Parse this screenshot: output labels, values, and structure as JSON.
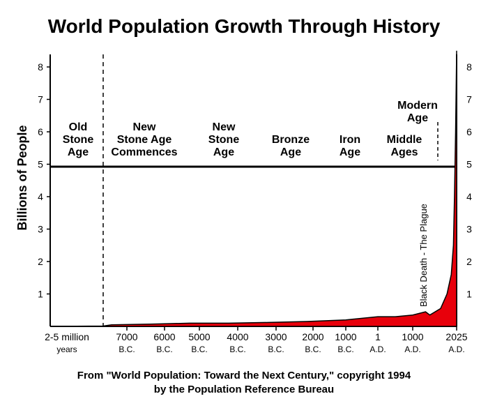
{
  "chart_data": {
    "type": "area",
    "title": "World Population Growth Through History",
    "ylabel": "Billions of People",
    "xlabel": "",
    "ylim": [
      0,
      8.5
    ],
    "y_ticks": [
      "1",
      "2",
      "3",
      "4",
      "5",
      "6",
      "7",
      "8"
    ],
    "x_ticks": [
      {
        "main": "2-5 million",
        "sub": "years"
      },
      {
        "main": "7000",
        "sub": "B.C."
      },
      {
        "main": "6000",
        "sub": "B.C."
      },
      {
        "main": "5000",
        "sub": "B.C."
      },
      {
        "main": "4000",
        "sub": "B.C."
      },
      {
        "main": "3000",
        "sub": "B.C."
      },
      {
        "main": "2000",
        "sub": "B.C."
      },
      {
        "main": "1000",
        "sub": "B.C."
      },
      {
        "main": "1",
        "sub": "A.D."
      },
      {
        "main": "1000",
        "sub": "A.D."
      },
      {
        "main": "2025",
        "sub": "A.D."
      }
    ],
    "series": [
      {
        "color": "#e8000b",
        "points": [
          {
            "x": "2-5 million years",
            "y": 0.0
          },
          {
            "x": "8000 B.C.",
            "y": 0.01
          },
          {
            "x": "7000 B.C.",
            "y": 0.05
          },
          {
            "x": "6000 B.C.",
            "y": 0.07
          },
          {
            "x": "5000 B.C.",
            "y": 0.1
          },
          {
            "x": "4000 B.C.",
            "y": 0.1
          },
          {
            "x": "3000 B.C.",
            "y": 0.12
          },
          {
            "x": "2000 B.C.",
            "y": 0.15
          },
          {
            "x": "1000 B.C.",
            "y": 0.2
          },
          {
            "x": "1 A.D.",
            "y": 0.3
          },
          {
            "x": "500 A.D.",
            "y": 0.3
          },
          {
            "x": "1000 A.D.",
            "y": 0.35
          },
          {
            "x": "1300 A.D.",
            "y": 0.45
          },
          {
            "x": "1400 A.D.",
            "y": 0.35
          },
          {
            "x": "1650 A.D.",
            "y": 0.55
          },
          {
            "x": "1800 A.D.",
            "y": 1.0
          },
          {
            "x": "1900 A.D.",
            "y": 1.6
          },
          {
            "x": "1950 A.D.",
            "y": 2.5
          },
          {
            "x": "1975 A.D.",
            "y": 4.0
          },
          {
            "x": "2000 A.D.",
            "y": 6.0
          },
          {
            "x": "2025 A.D.",
            "y": 8.5
          }
        ]
      }
    ],
    "eras": [
      {
        "lines": [
          "Old",
          "Stone",
          "Age"
        ]
      },
      {
        "lines": [
          "New",
          "Stone Age",
          "Commences"
        ]
      },
      {
        "lines": [
          "New",
          "Stone",
          "Age"
        ]
      },
      {
        "lines": [
          "Bronze",
          "Age"
        ]
      },
      {
        "lines": [
          "Iron",
          "Age"
        ]
      },
      {
        "lines": [
          "Middle",
          "Ages"
        ]
      },
      {
        "lines": [
          "Modern",
          "Age"
        ]
      }
    ],
    "annotations": [
      "Black Death - The Plague"
    ],
    "grid": false
  },
  "source": {
    "line1": "From \"World Population: Toward the Next Century,\" copyright 1994",
    "line2": "by the Population Reference Bureau"
  }
}
